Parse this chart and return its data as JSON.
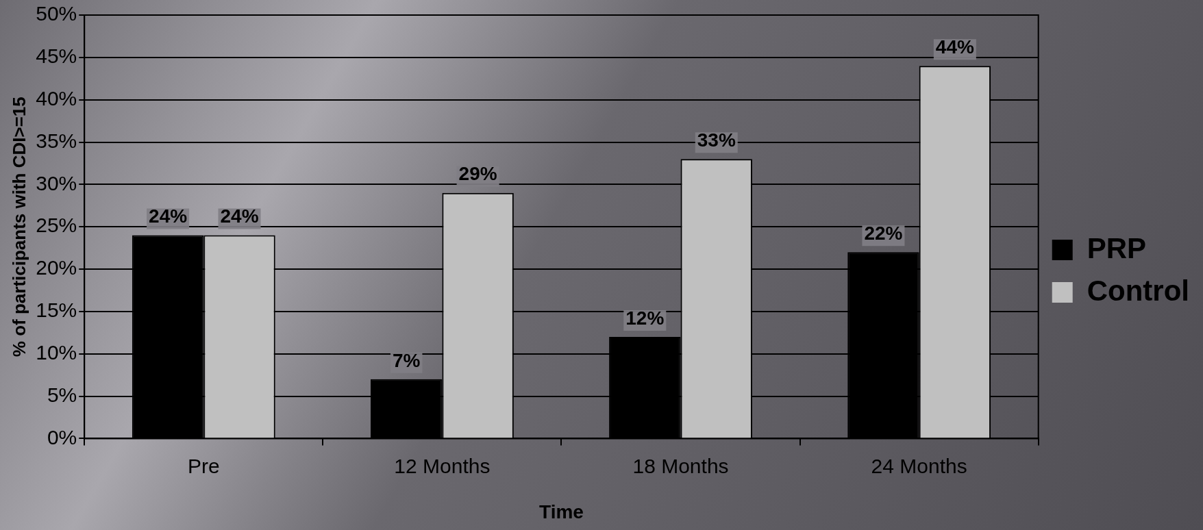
{
  "chart_data": {
    "type": "bar",
    "xlabel": "Time",
    "ylabel": "% of participants with CDI>=15",
    "categories": [
      "Pre",
      "12 Months",
      "18 Months",
      "24 Months"
    ],
    "series": [
      {
        "name": "PRP",
        "color": "#000000",
        "values": [
          24,
          7,
          12,
          22
        ],
        "value_labels": [
          "24%",
          "7%",
          "12%",
          "22%"
        ]
      },
      {
        "name": "Control",
        "color": "#c0c0c0",
        "values": [
          24,
          29,
          33,
          44
        ],
        "value_labels": [
          "24%",
          "29%",
          "33%",
          "44%"
        ]
      }
    ],
    "ylim": [
      0,
      50
    ],
    "yticks": [
      {
        "value": 0,
        "label": "0%"
      },
      {
        "value": 5,
        "label": "5%"
      },
      {
        "value": 10,
        "label": "10%"
      },
      {
        "value": 15,
        "label": "15%"
      },
      {
        "value": 20,
        "label": "20%"
      },
      {
        "value": 25,
        "label": "25%"
      },
      {
        "value": 30,
        "label": "30%"
      },
      {
        "value": 35,
        "label": "35%"
      },
      {
        "value": 40,
        "label": "40%"
      },
      {
        "value": 45,
        "label": "45%"
      },
      {
        "value": 50,
        "label": "50%"
      }
    ],
    "grid": "y",
    "legend": "right"
  }
}
